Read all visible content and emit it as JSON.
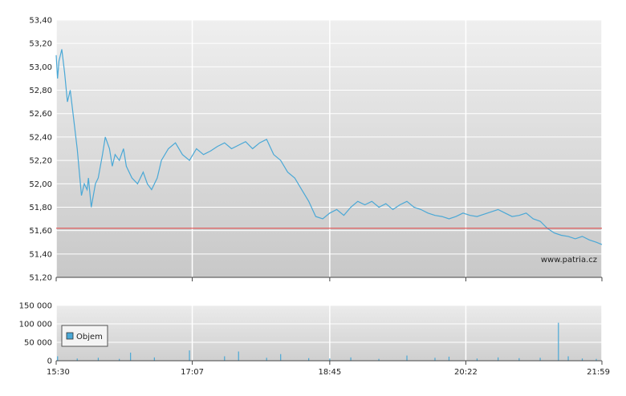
{
  "watermark": "www.patria.cz",
  "colors": {
    "line": "#4aa8d6",
    "reference": "#e04040",
    "volume": "#4aa8d6",
    "grid": "#ffffff"
  },
  "chart_data": [
    {
      "type": "line",
      "title": "",
      "xlabel": "",
      "ylabel": "",
      "ylim": [
        51.2,
        53.4
      ],
      "y_ticks": [
        51.2,
        51.4,
        51.6,
        51.8,
        52.0,
        52.2,
        52.4,
        52.6,
        52.8,
        53.0,
        53.2,
        53.4
      ],
      "y_tick_labels": [
        "51,20",
        "51,40",
        "51,60",
        "51,80",
        "52,00",
        "52,20",
        "52,40",
        "52,60",
        "52,80",
        "53,00",
        "53,20",
        "53,40"
      ],
      "x_tick_labels": [
        "15:30",
        "17:07",
        "18:45",
        "20:22",
        "21:59"
      ],
      "reference_value": 51.62,
      "grid": true,
      "series": [
        {
          "x": [
            "15:30",
            "15:31",
            "15:32",
            "15:34",
            "15:36",
            "15:38",
            "15:40",
            "15:42",
            "15:45",
            "15:48",
            "15:50",
            "15:52",
            "15:53",
            "15:55",
            "15:58",
            "16:00",
            "16:03",
            "16:05",
            "16:08",
            "16:10",
            "16:12",
            "16:15",
            "16:18",
            "16:20",
            "16:24",
            "16:28",
            "16:32",
            "16:35",
            "16:38",
            "16:42",
            "16:45",
            "16:50",
            "16:55",
            "17:00",
            "17:05",
            "17:10",
            "17:15",
            "17:20",
            "17:25",
            "17:30",
            "17:35",
            "17:40",
            "17:45",
            "17:50",
            "17:55",
            "18:00",
            "18:05",
            "18:10",
            "18:15",
            "18:20",
            "18:25",
            "18:30",
            "18:35",
            "18:40",
            "18:45",
            "18:50",
            "18:55",
            "19:00",
            "19:05",
            "19:10",
            "19:15",
            "19:20",
            "19:25",
            "19:30",
            "19:35",
            "19:40",
            "19:45",
            "19:50",
            "19:55",
            "20:00",
            "20:05",
            "20:10",
            "20:15",
            "20:20",
            "20:25",
            "20:30",
            "20:35",
            "20:40",
            "20:45",
            "20:50",
            "20:55",
            "21:00",
            "21:05",
            "21:10",
            "21:15",
            "21:20",
            "21:25",
            "21:30",
            "21:35",
            "21:40",
            "21:45",
            "21:50",
            "21:55",
            "21:59"
          ],
          "values": [
            53.1,
            52.9,
            53.05,
            53.15,
            52.95,
            52.7,
            52.8,
            52.6,
            52.3,
            51.9,
            52.0,
            51.95,
            52.05,
            51.8,
            52.0,
            52.05,
            52.25,
            52.4,
            52.3,
            52.15,
            52.25,
            52.2,
            52.3,
            52.15,
            52.05,
            52.0,
            52.1,
            52.0,
            51.95,
            52.05,
            52.2,
            52.3,
            52.35,
            52.25,
            52.2,
            52.3,
            52.25,
            52.28,
            52.32,
            52.35,
            52.3,
            52.33,
            52.36,
            52.3,
            52.35,
            52.38,
            52.25,
            52.2,
            52.1,
            52.05,
            51.95,
            51.85,
            51.72,
            51.7,
            51.75,
            51.78,
            51.73,
            51.8,
            51.85,
            51.82,
            51.85,
            51.8,
            51.83,
            51.78,
            51.82,
            51.85,
            51.8,
            51.78,
            51.75,
            51.73,
            51.72,
            51.7,
            51.72,
            51.75,
            51.73,
            51.72,
            51.74,
            51.76,
            51.78,
            51.75,
            51.72,
            51.73,
            51.75,
            51.7,
            51.68,
            51.62,
            51.58,
            51.56,
            51.55,
            51.53,
            51.55,
            51.52,
            51.5,
            51.48
          ]
        }
      ]
    },
    {
      "type": "bar",
      "title": "",
      "xlabel": "",
      "ylabel": "",
      "ylim": [
        0,
        150000
      ],
      "y_ticks": [
        0,
        50000,
        100000,
        150000
      ],
      "y_tick_labels": [
        "0",
        "50 000",
        "100 000",
        "150 000"
      ],
      "x_tick_labels": [
        "15:30",
        "17:07",
        "18:45",
        "20:22",
        "21:59"
      ],
      "legend": {
        "label": "Objem",
        "position": "left"
      },
      "grid": true,
      "series": [
        {
          "name": "Objem",
          "x": [
            "15:31",
            "15:45",
            "16:00",
            "16:15",
            "16:23",
            "16:40",
            "17:05",
            "17:30",
            "17:40",
            "18:00",
            "18:10",
            "18:30",
            "18:45",
            "19:00",
            "19:20",
            "19:40",
            "20:00",
            "20:10",
            "20:30",
            "20:45",
            "21:00",
            "21:15",
            "21:28",
            "21:35",
            "21:45",
            "21:55"
          ],
          "values": [
            12000,
            6000,
            8000,
            5000,
            22000,
            9000,
            28000,
            12000,
            25000,
            8000,
            18000,
            7000,
            6000,
            9000,
            5000,
            14000,
            8000,
            11000,
            6000,
            9000,
            7000,
            8000,
            103000,
            12000,
            6000,
            5000
          ]
        }
      ]
    }
  ]
}
